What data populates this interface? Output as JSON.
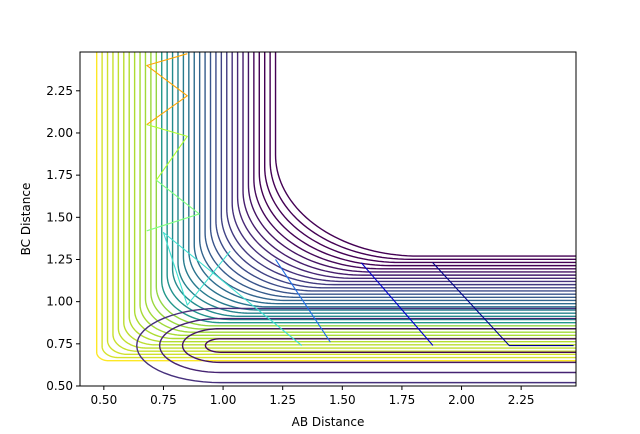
{
  "chart_data": {
    "type": "contour",
    "title": "",
    "xlabel": "AB Distance",
    "ylabel": "BC Distance",
    "xlim": [
      0.4,
      2.48
    ],
    "ylim": [
      0.5,
      2.48
    ],
    "xticks": [
      "0.50",
      "0.75",
      "1.00",
      "1.25",
      "1.50",
      "1.75",
      "2.00",
      "2.25"
    ],
    "yticks": [
      "0.50",
      "0.75",
      "1.00",
      "1.25",
      "1.50",
      "1.75",
      "2.00",
      "2.25"
    ],
    "xtick_values": [
      0.5,
      0.75,
      1.0,
      1.25,
      1.5,
      1.75,
      2.0,
      2.25
    ],
    "ytick_values": [
      0.5,
      0.75,
      1.0,
      1.25,
      1.5,
      1.75,
      2.0,
      2.25
    ],
    "colormap": "viridis",
    "potential_surface": {
      "well_bond_length": 0.74,
      "asymptote_level_count": 34,
      "level_colors": [
        "#440154",
        "#472c7a",
        "#3b518b",
        "#2c718e",
        "#21908d",
        "#27ad81",
        "#5cc863",
        "#aadc32",
        "#fde725"
      ]
    },
    "trajectories": [
      {
        "label_color": "#00008b",
        "x": [
          2.47,
          2.2,
          1.88,
          2.2
        ],
        "y": [
          0.74,
          0.74,
          1.23,
          0.74
        ]
      },
      {
        "label_color": "#0000cd",
        "x": [
          1.88,
          1.58
        ],
        "y": [
          0.74,
          1.23
        ]
      },
      {
        "label_color": "#1e6ee6",
        "x": [
          1.45,
          1.22
        ],
        "y": [
          0.76,
          1.25
        ]
      },
      {
        "label_color": "#40e0d0",
        "x": [
          1.33,
          0.75,
          0.85,
          1.03
        ],
        "y": [
          0.74,
          1.41,
          0.98,
          1.3
        ]
      },
      {
        "label_color": "#7fff7f",
        "x": [
          0.68,
          0.9,
          0.72
        ],
        "y": [
          1.42,
          1.52,
          1.72
        ]
      },
      {
        "label_color": "#adff2f",
        "x": [
          0.72,
          0.85,
          0.68
        ],
        "y": [
          1.72,
          1.98,
          2.05
        ]
      },
      {
        "label_color": "#ffa500",
        "x": [
          0.68,
          0.85,
          0.68,
          0.85
        ],
        "y": [
          2.05,
          2.22,
          2.4,
          2.47
        ]
      }
    ]
  }
}
